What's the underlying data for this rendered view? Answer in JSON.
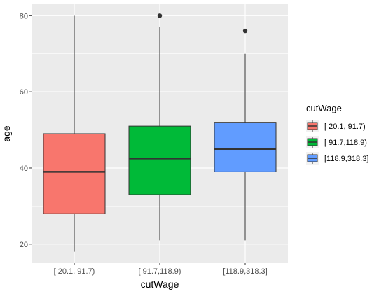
{
  "chart_data": {
    "type": "boxplot",
    "title": "",
    "xlabel": "cutWage",
    "ylabel": "age",
    "ylim": [
      15,
      83
    ],
    "yticks": [
      20,
      40,
      60,
      80
    ],
    "grid": true,
    "legend": {
      "title": "cutWage",
      "placement": "right"
    },
    "categories": [
      "[ 20.1, 91.7)",
      "[ 91.7,118.9)",
      "[118.9,318.3]"
    ],
    "series": [
      {
        "name": "[ 20.1, 91.7)",
        "color": "#F8766D",
        "min": 18,
        "q1": 28,
        "median": 39,
        "q3": 49,
        "max": 80,
        "outliers": []
      },
      {
        "name": "[ 91.7,118.9)",
        "color": "#00BA38",
        "min": 21,
        "q1": 33,
        "median": 42.5,
        "q3": 51,
        "max": 77,
        "outliers": [
          80
        ]
      },
      {
        "name": "[118.9,318.3]",
        "color": "#619CFF",
        "min": 21,
        "q1": 39,
        "median": 45,
        "q3": 52,
        "max": 70,
        "outliers": [
          76
        ]
      }
    ]
  }
}
